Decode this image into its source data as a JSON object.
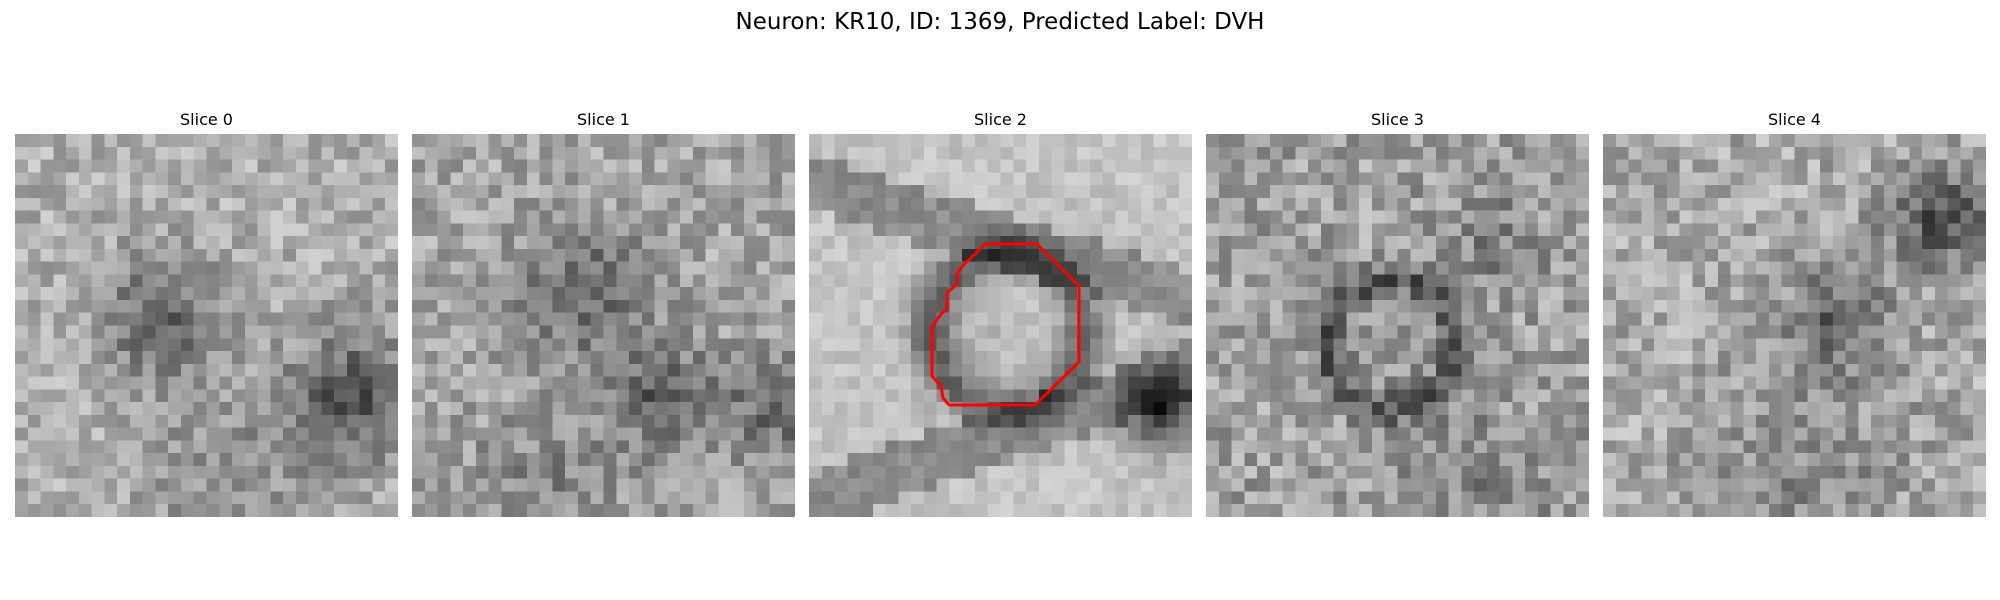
{
  "figure": {
    "title": "Neuron: KR10, ID: 1369, Predicted Label: DVH"
  },
  "panels": [
    {
      "title": "Slice 0",
      "has_roi": false
    },
    {
      "title": "Slice 1",
      "has_roi": false
    },
    {
      "title": "Slice 2",
      "has_roi": true
    },
    {
      "title": "Slice 3",
      "has_roi": false
    },
    {
      "title": "Slice 4",
      "has_roi": false
    }
  ],
  "image": {
    "colormap": "gray",
    "grid_cells": 30
  },
  "roi": {
    "color": "#ff0000"
  }
}
